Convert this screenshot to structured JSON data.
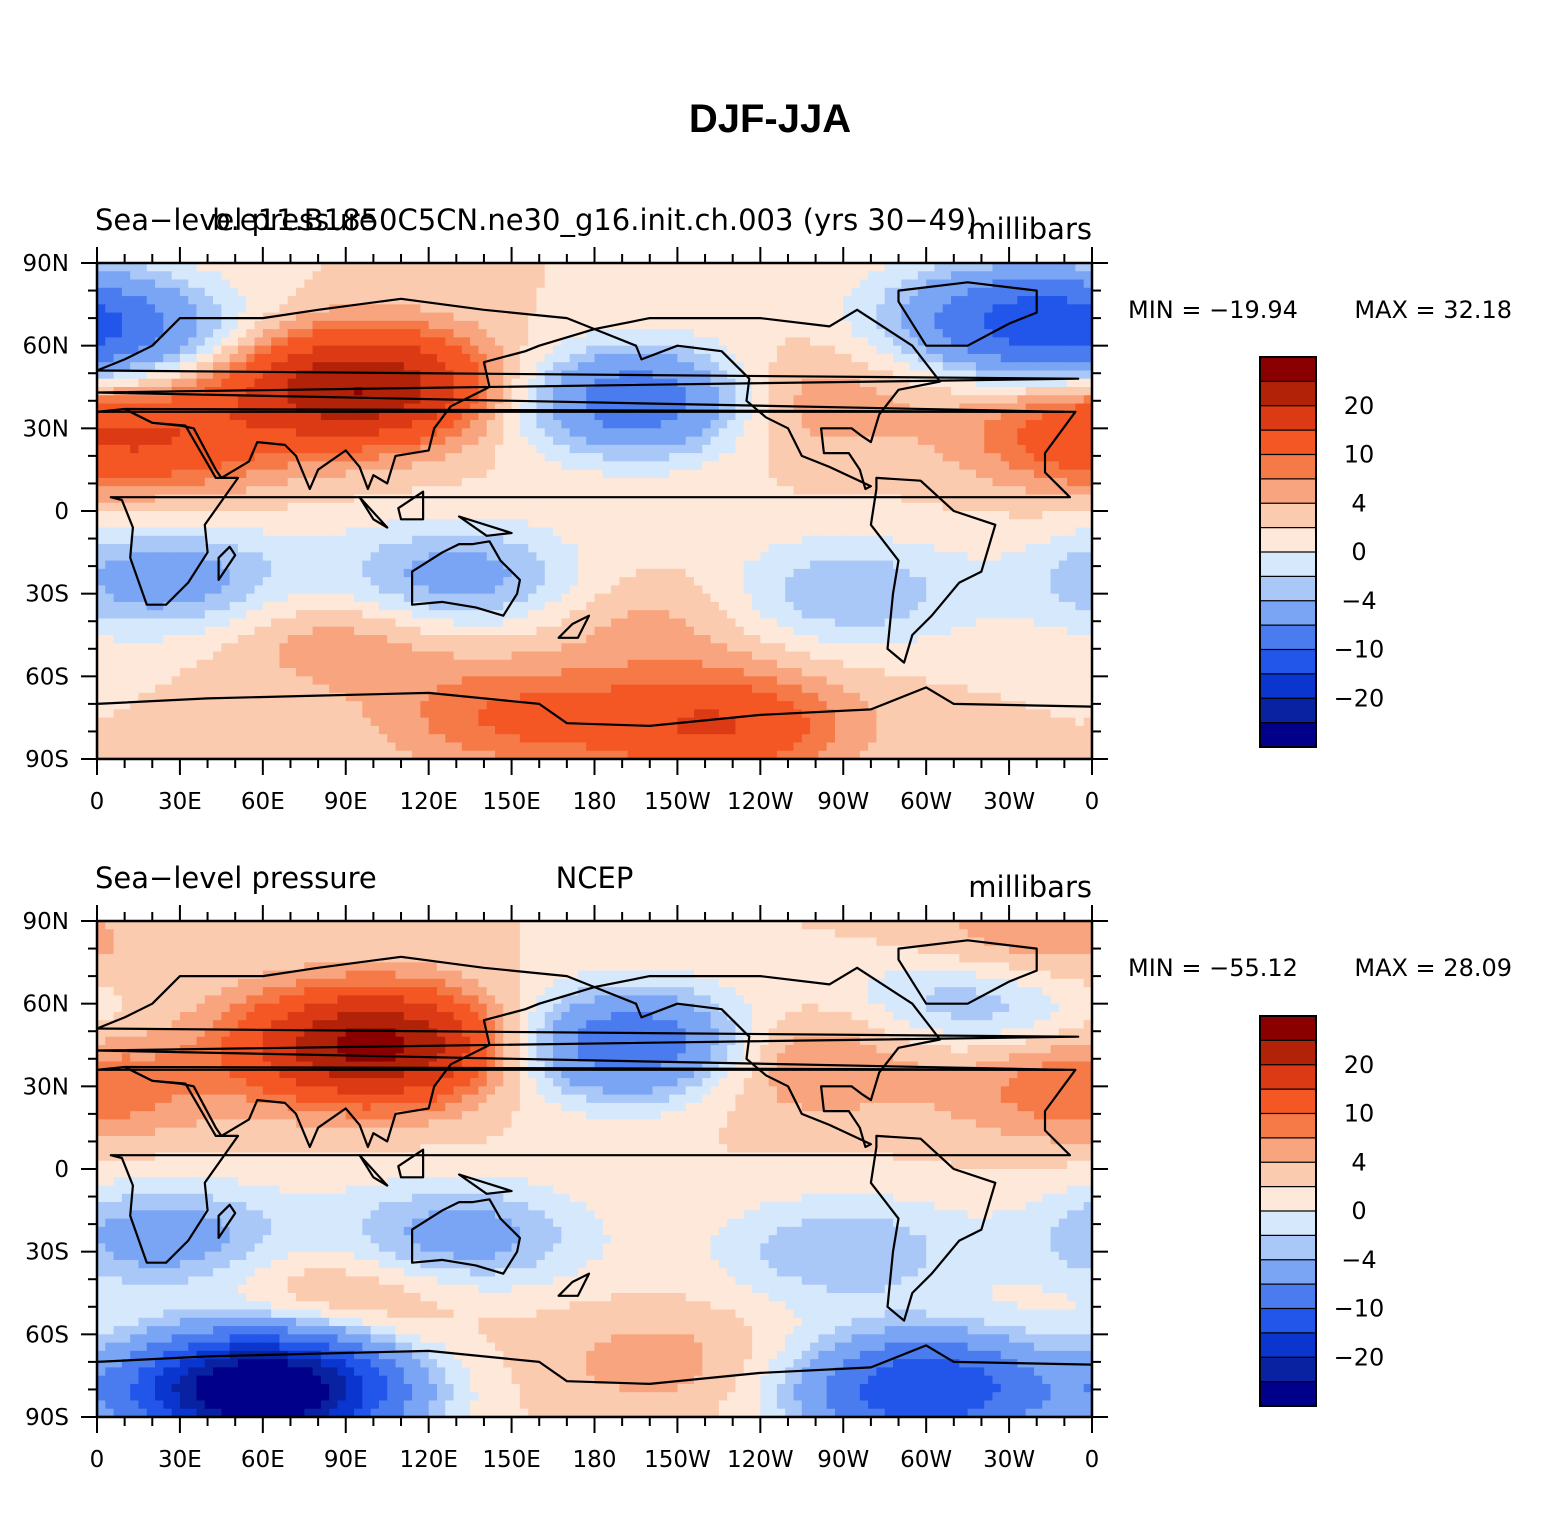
{
  "figure_title": "DJF-JJA",
  "colorbar_levels": [
    "20",
    "10",
    "4",
    "0",
    "−4",
    "−10",
    "−20"
  ],
  "colorbar_colors": [
    "#8a0000",
    "#b22208",
    "#dc3a14",
    "#f45624",
    "#f57a48",
    "#f8a47e",
    "#fbcbb0",
    "#fde8da",
    "#d6e8fc",
    "#a9c8f8",
    "#7aa5f4",
    "#4a7cef",
    "#2256ea",
    "#0a36cf",
    "#0822a2",
    "#00008a"
  ],
  "x_ticks": [
    "0",
    "30E",
    "60E",
    "90E",
    "120E",
    "150E",
    "180",
    "150W",
    "120W",
    "90W",
    "60W",
    "30W",
    "0"
  ],
  "y_ticks": [
    "90N",
    "60N",
    "30N",
    "0",
    "30S",
    "60S",
    "90S"
  ],
  "panels": [
    {
      "left_label": "Sea−level pressure",
      "center_label": "b.e11.B1850C5CN.ne30_g16.init.ch.003 (yrs 30−49)",
      "right_label": "millibars",
      "min_label": "MIN = −19.94",
      "max_label": "MAX =   32.18"
    },
    {
      "left_label": "Sea−level pressure",
      "center_label": "NCEP",
      "right_label": "millibars",
      "min_label": "MIN = −55.12",
      "max_label": "MAX =   28.09"
    }
  ],
  "chart_data": [
    {
      "type": "heatmap",
      "title": "DJF-JJA",
      "variable": "Sea−level pressure",
      "source": "b.e11.B1850C5CN.ne30_g16.init.ch.003 (yrs 30−49)",
      "units": "millibars",
      "min": -19.94,
      "max": 32.18,
      "xlim": [
        0,
        360
      ],
      "ylim": [
        -90,
        90
      ],
      "contour_levels": [
        -30,
        -25,
        -20,
        -15,
        -10,
        -6,
        -4,
        -2,
        0,
        2,
        4,
        6,
        10,
        15,
        20,
        25
      ],
      "colorbar_labels": [
        20,
        10,
        4,
        0,
        -4,
        -10,
        -20
      ],
      "features": [
        {
          "lon": 95,
          "lat": 45,
          "value": 20
        },
        {
          "lon": 200,
          "lat": 40,
          "value": -15
        },
        {
          "lon": 330,
          "lat": 70,
          "value": -12
        },
        {
          "lon": 5,
          "lat": 65,
          "value": -10
        },
        {
          "lon": 245,
          "lat": 40,
          "value": 6
        },
        {
          "lon": 25,
          "lat": 25,
          "value": 6
        },
        {
          "lon": 355,
          "lat": 30,
          "value": 6
        },
        {
          "lon": 150,
          "lat": -75,
          "value": 6
        },
        {
          "lon": 225,
          "lat": -78,
          "value": 10
        },
        {
          "lon": 270,
          "lat": -30,
          "value": -6
        },
        {
          "lon": 25,
          "lat": -25,
          "value": -8
        },
        {
          "lon": 130,
          "lat": -25,
          "value": -8
        },
        {
          "lon": 90,
          "lat": -45,
          "value": 4
        },
        {
          "lon": 200,
          "lat": -40,
          "value": 3
        }
      ]
    },
    {
      "type": "heatmap",
      "title": "DJF-JJA",
      "variable": "Sea−level pressure",
      "source": "NCEP",
      "units": "millibars",
      "min": -55.12,
      "max": 28.09,
      "xlim": [
        0,
        360
      ],
      "ylim": [
        -90,
        90
      ],
      "contour_levels": [
        -30,
        -25,
        -20,
        -15,
        -10,
        -6,
        -4,
        -2,
        0,
        2,
        4,
        6,
        10,
        15,
        20,
        25
      ],
      "colorbar_labels": [
        20,
        10,
        4,
        0,
        -4,
        -10,
        -20
      ],
      "features": [
        {
          "lon": 100,
          "lat": 45,
          "value": 22
        },
        {
          "lon": 195,
          "lat": 45,
          "value": -15
        },
        {
          "lon": 320,
          "lat": 65,
          "value": -10
        },
        {
          "lon": 330,
          "lat": 75,
          "value": 8
        },
        {
          "lon": 250,
          "lat": 40,
          "value": 6
        },
        {
          "lon": 355,
          "lat": 30,
          "value": 6
        },
        {
          "lon": 60,
          "lat": -80,
          "value": -40
        },
        {
          "lon": 300,
          "lat": -80,
          "value": -20
        },
        {
          "lon": 205,
          "lat": -70,
          "value": 3
        },
        {
          "lon": 25,
          "lat": -25,
          "value": -8
        },
        {
          "lon": 130,
          "lat": -25,
          "value": -8
        },
        {
          "lon": 270,
          "lat": -30,
          "value": -6
        },
        {
          "lon": 90,
          "lat": -45,
          "value": 4
        }
      ]
    }
  ]
}
